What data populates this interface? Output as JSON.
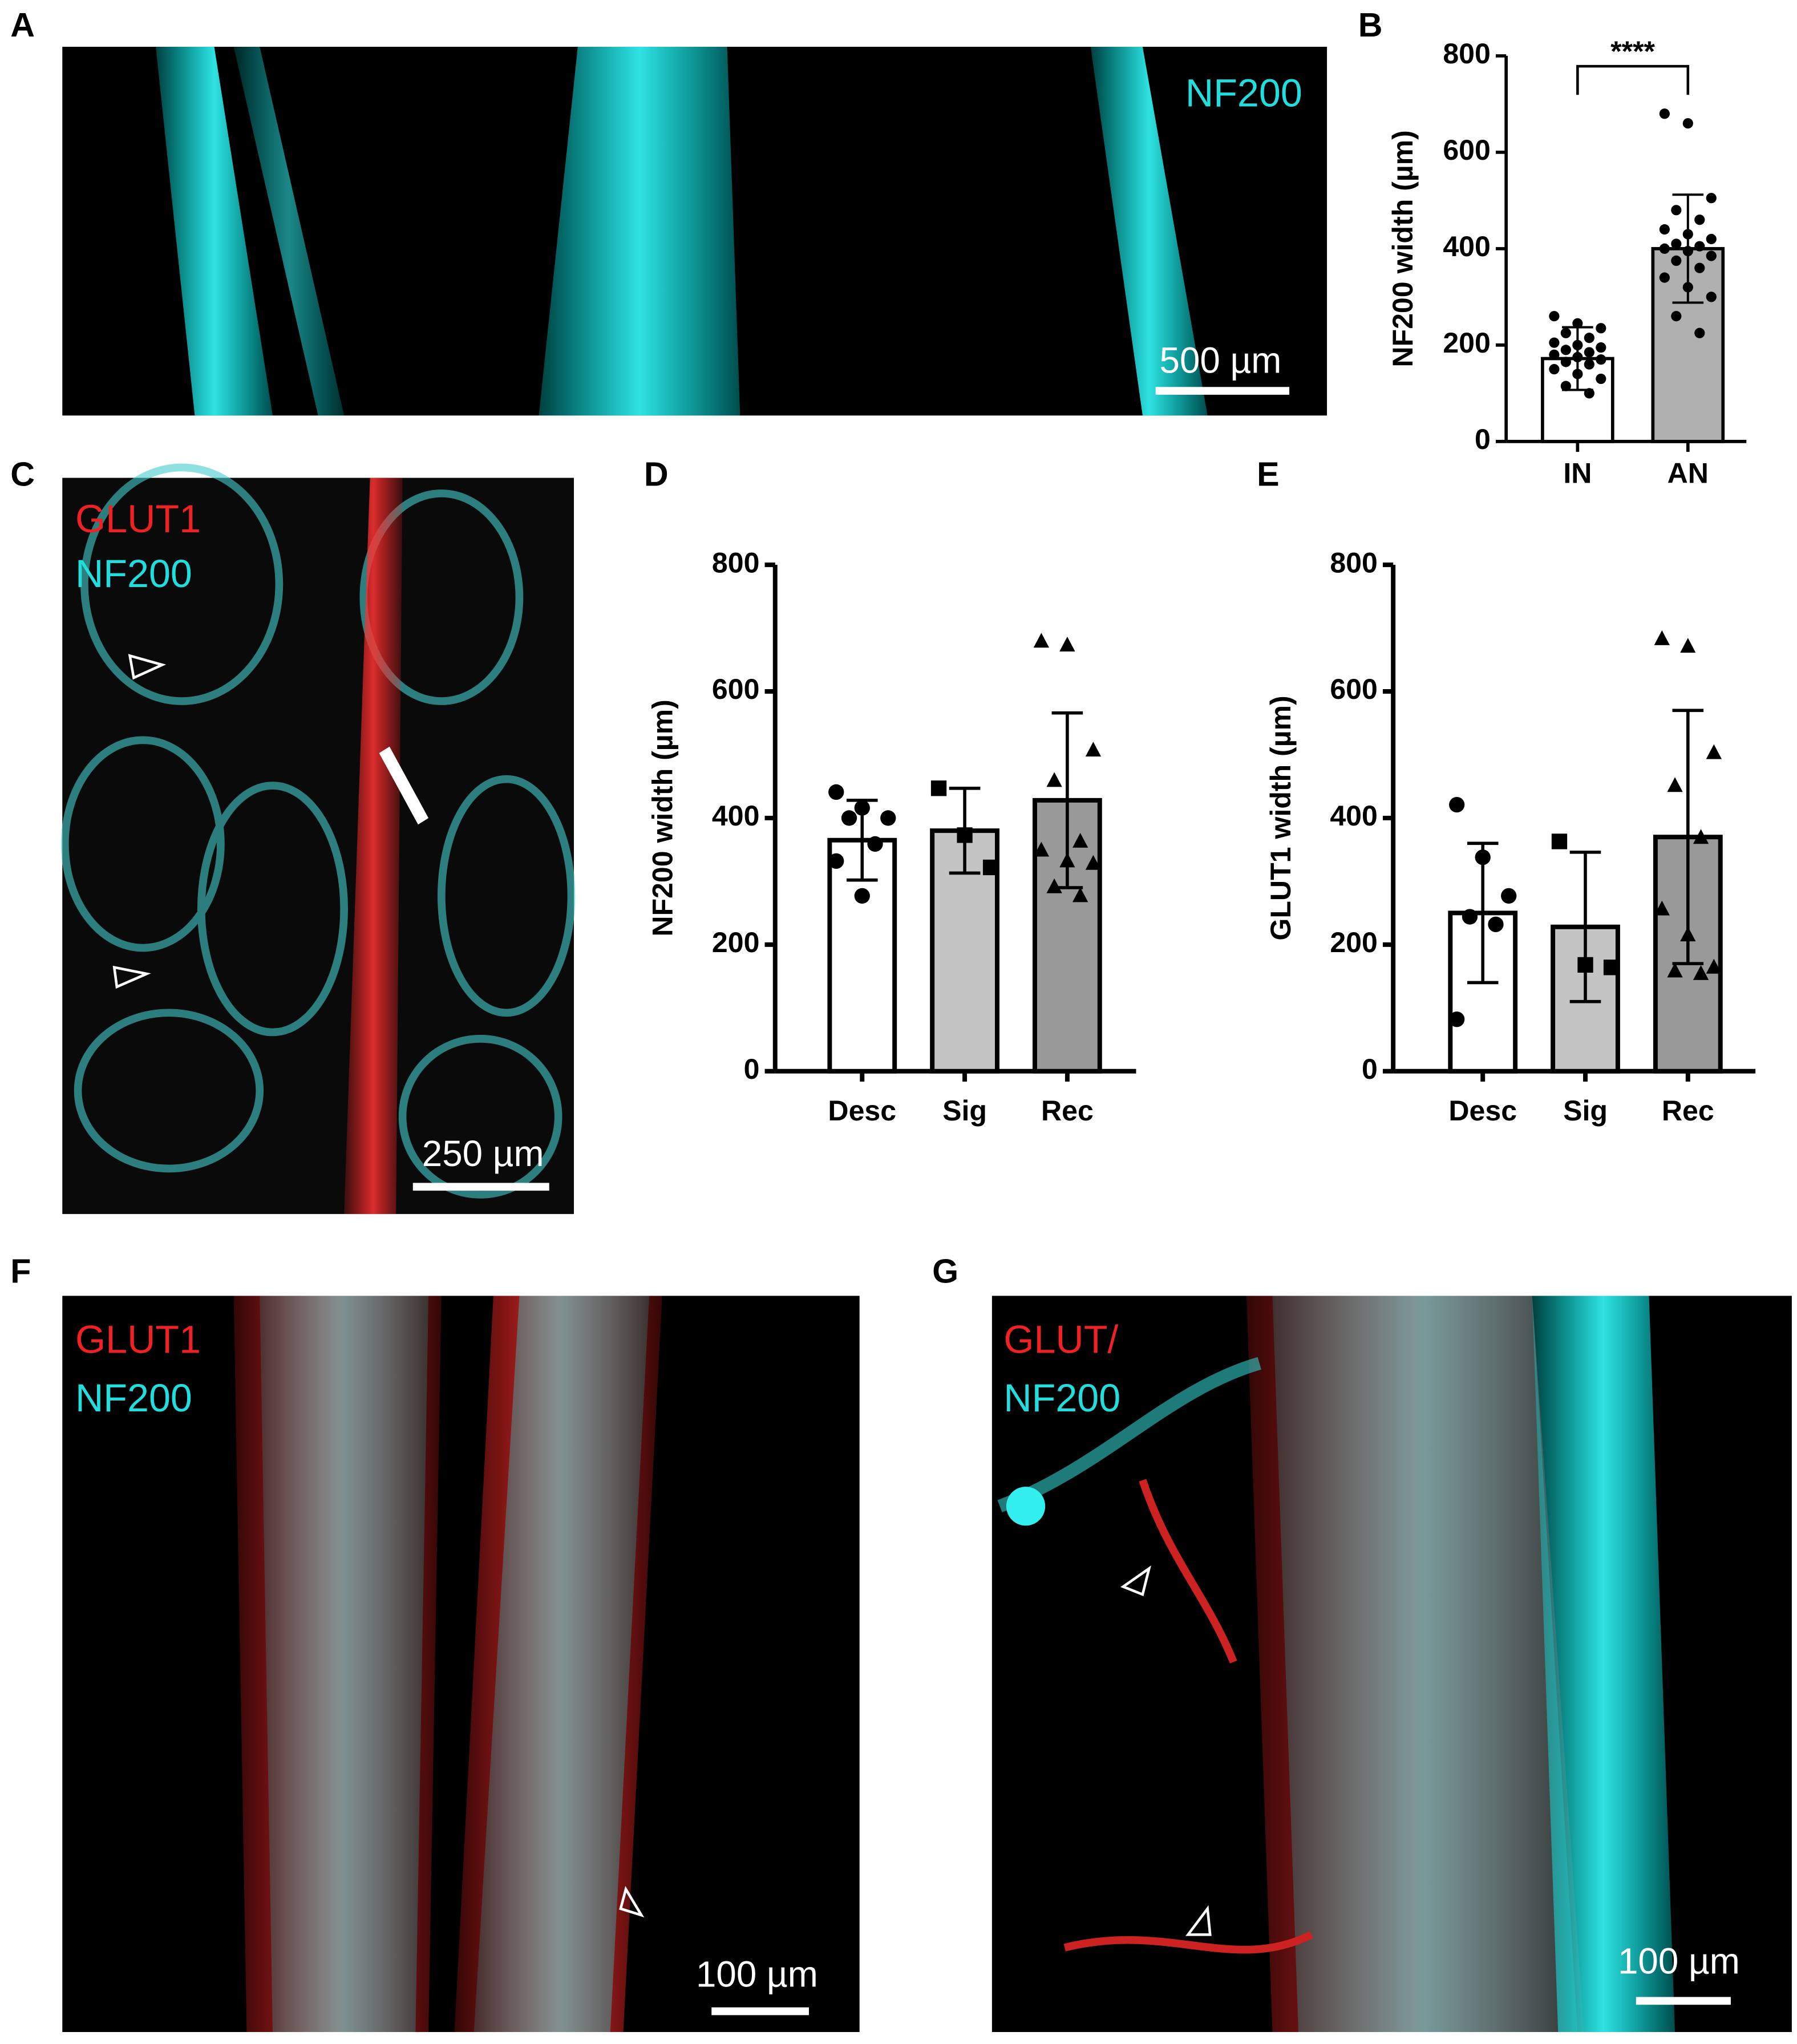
{
  "panel_labels": [
    "A",
    "B",
    "C",
    "D",
    "E",
    "F",
    "G"
  ],
  "images": {
    "A": {
      "labels": [
        "NF200"
      ],
      "scale_bar": "500 µm"
    },
    "C": {
      "labels": [
        "GLUT1",
        "NF200"
      ],
      "scale_bar": "250 µm"
    },
    "F": {
      "labels": [
        "GLUT1",
        "NF200"
      ],
      "scale_bar": "100 µm"
    },
    "G": {
      "labels": [
        "GLUT/",
        "NF200"
      ],
      "scale_bar": "100 µm"
    }
  },
  "chart_data": [
    {
      "type": "bar",
      "ylabel": "NF200 width (µm)",
      "categories": [
        "IN",
        "AN"
      ],
      "values": [
        172,
        400
      ],
      "errors": [
        65,
        112
      ],
      "points": [
        [
          260,
          245,
          235,
          225,
          215,
          205,
          200,
          195,
          190,
          185,
          180,
          175,
          170,
          165,
          160,
          150,
          140,
          130,
          115,
          100
        ],
        [
          680,
          660,
          505,
          480,
          460,
          440,
          430,
          420,
          410,
          405,
          400,
          395,
          385,
          375,
          360,
          340,
          320,
          300,
          260,
          225
        ]
      ],
      "markers": [
        "circle",
        "circle"
      ],
      "colors": [
        "#ffffff",
        "#b0b0b0"
      ],
      "annotation": "****",
      "ylim": [
        0,
        800
      ],
      "yticks": [
        0,
        200,
        400,
        600,
        800
      ]
    },
    {
      "type": "bar",
      "ylabel": "NF200 width (µm)",
      "categories": [
        "Desc",
        "Sig",
        "Rec"
      ],
      "values": [
        365,
        380,
        428
      ],
      "errors": [
        63,
        67,
        138
      ],
      "points": [
        [
          441,
          416,
          400,
          400,
          359,
          332,
          277
        ],
        [
          447,
          373,
          322
        ],
        [
          679,
          673,
          507,
          459,
          363,
          349,
          332,
          328,
          291,
          277
        ]
      ],
      "markers": [
        "circle",
        "square",
        "triangle"
      ],
      "colors": [
        "#ffffff",
        "#c4c4c4",
        "#999999"
      ],
      "ylim": [
        0,
        800
      ],
      "yticks": [
        0,
        200,
        400,
        600,
        800
      ]
    },
    {
      "type": "bar",
      "ylabel": "GLUT1 width (µm)",
      "categories": [
        "Desc",
        "Sig",
        "Rec"
      ],
      "values": [
        250,
        228,
        370
      ],
      "errors": [
        110,
        118,
        200
      ],
      "points": [
        [
          421,
          338,
          277,
          244,
          232,
          82
        ],
        [
          363,
          168,
          164
        ],
        [
          683,
          671,
          503,
          451,
          369,
          256,
          215,
          164,
          158,
          154
        ]
      ],
      "markers": [
        "circle",
        "square",
        "triangle"
      ],
      "colors": [
        "#ffffff",
        "#c4c4c4",
        "#999999"
      ],
      "ylim": [
        0,
        800
      ],
      "yticks": [
        0,
        200,
        400,
        600,
        800
      ]
    }
  ]
}
